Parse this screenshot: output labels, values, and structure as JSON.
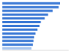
{
  "chart_data": {
    "type": "bar",
    "orientation": "horizontal",
    "categories": [
      null,
      null,
      null,
      null,
      null,
      null,
      null,
      null,
      null,
      null,
      null,
      null,
      null
    ],
    "values": [
      87,
      85,
      76,
      69,
      64,
      58,
      56,
      53,
      50,
      48,
      47,
      46,
      44
    ],
    "colors": [
      "#3e7bd6",
      "#3e7bd6",
      "#3e7bd6",
      "#3e7bd6",
      "#3e7bd6",
      "#3e7bd6",
      "#3e7bd6",
      "#3e7bd6",
      "#3e7bd6",
      "#3e7bd6",
      "#3e7bd6",
      "#3e7bd6",
      "#a9c6ef"
    ],
    "xlim": [
      0,
      100
    ],
    "grid": false,
    "tick_labels": false
  }
}
